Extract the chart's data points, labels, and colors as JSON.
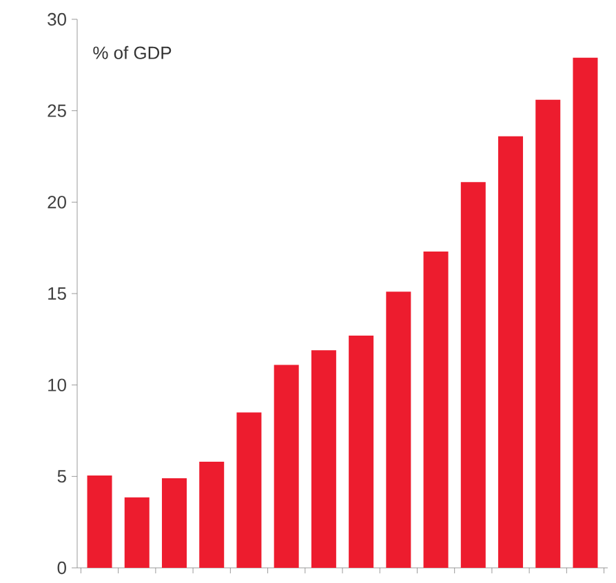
{
  "chart_data": {
    "type": "bar",
    "ylabel": "% of GDP",
    "categories": [
      null,
      null,
      null,
      null,
      null,
      null,
      null,
      null,
      null,
      null,
      null,
      null,
      null,
      null
    ],
    "values": [
      5.05,
      3.85,
      4.9,
      5.8,
      8.5,
      11.1,
      11.9,
      12.7,
      15.1,
      17.3,
      21.1,
      23.6,
      25.6,
      27.9
    ],
    "color": "#ed1c2e",
    "ylim": [
      0,
      30
    ],
    "yticks": [
      0,
      5,
      10,
      15,
      20,
      25,
      30
    ]
  }
}
